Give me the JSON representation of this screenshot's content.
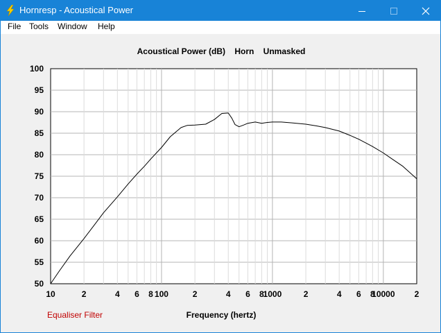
{
  "window": {
    "title": "Hornresp - Acoustical Power",
    "icon": "lightning-bolt-icon",
    "controls": [
      "minimize-icon",
      "maximize-icon",
      "close-icon"
    ]
  },
  "menu": {
    "items": [
      {
        "label": "File"
      },
      {
        "label": "Tools"
      },
      {
        "label": "Window"
      },
      {
        "label": "Help"
      }
    ]
  },
  "footer": {
    "equaliser_label": "Equaliser Filter"
  },
  "colors": {
    "titlebar": "#1883d7",
    "plot_background": "#ffffff",
    "panel_background": "#f0f0f0",
    "grid_major": "#b4b4b4",
    "grid_minor": "#dcdcdc",
    "curve": "#000000",
    "equaliser_text": "#c00000"
  },
  "chart_data": {
    "type": "line",
    "title": "Acoustical Power (dB)    Horn    Unmasked",
    "xlabel": "Frequency (hertz)",
    "ylabel": "",
    "xscale": "log",
    "xlim": [
      10,
      20000
    ],
    "ylim": [
      50,
      100
    ],
    "grid": true,
    "y_ticks": [
      "100",
      "95",
      "90",
      "85",
      "80",
      "75",
      "70",
      "65",
      "60",
      "55",
      "50"
    ],
    "x_ticks": [
      {
        "value": 10,
        "label": "10"
      },
      {
        "value": 20,
        "label": "2"
      },
      {
        "value": 40,
        "label": "4"
      },
      {
        "value": 60,
        "label": "6"
      },
      {
        "value": 80,
        "label": "8"
      },
      {
        "value": 100,
        "label": "100"
      },
      {
        "value": 200,
        "label": "2"
      },
      {
        "value": 400,
        "label": "4"
      },
      {
        "value": 600,
        "label": "6"
      },
      {
        "value": 800,
        "label": "8"
      },
      {
        "value": 1000,
        "label": "1000"
      },
      {
        "value": 2000,
        "label": "2"
      },
      {
        "value": 4000,
        "label": "4"
      },
      {
        "value": 6000,
        "label": "6"
      },
      {
        "value": 8000,
        "label": "8"
      },
      {
        "value": 10000,
        "label": "10000"
      },
      {
        "value": 20000,
        "label": "2"
      }
    ],
    "series": [
      {
        "color": "#000000",
        "x": [
          10,
          12,
          15,
          20,
          25,
          30,
          40,
          50,
          60,
          70,
          80,
          100,
          120,
          150,
          170,
          200,
          250,
          300,
          350,
          400,
          430,
          460,
          500,
          550,
          600,
          700,
          800,
          900,
          1000,
          1200,
          1500,
          2000,
          2500,
          3000,
          4000,
          5000,
          6000,
          7000,
          8000,
          10000,
          12000,
          15000,
          20000
        ],
        "y": [
          50,
          53,
          56.5,
          60.5,
          63.8,
          66.5,
          70.2,
          73.2,
          75.5,
          77.3,
          79.0,
          81.7,
          84.2,
          86.3,
          86.8,
          86.9,
          87.1,
          88.2,
          89.6,
          89.7,
          88.5,
          87.0,
          86.5,
          86.9,
          87.3,
          87.6,
          87.3,
          87.5,
          87.6,
          87.6,
          87.4,
          87.1,
          86.7,
          86.3,
          85.5,
          84.5,
          83.6,
          82.7,
          81.9,
          80.4,
          79.0,
          77.3,
          74.4
        ]
      }
    ]
  }
}
